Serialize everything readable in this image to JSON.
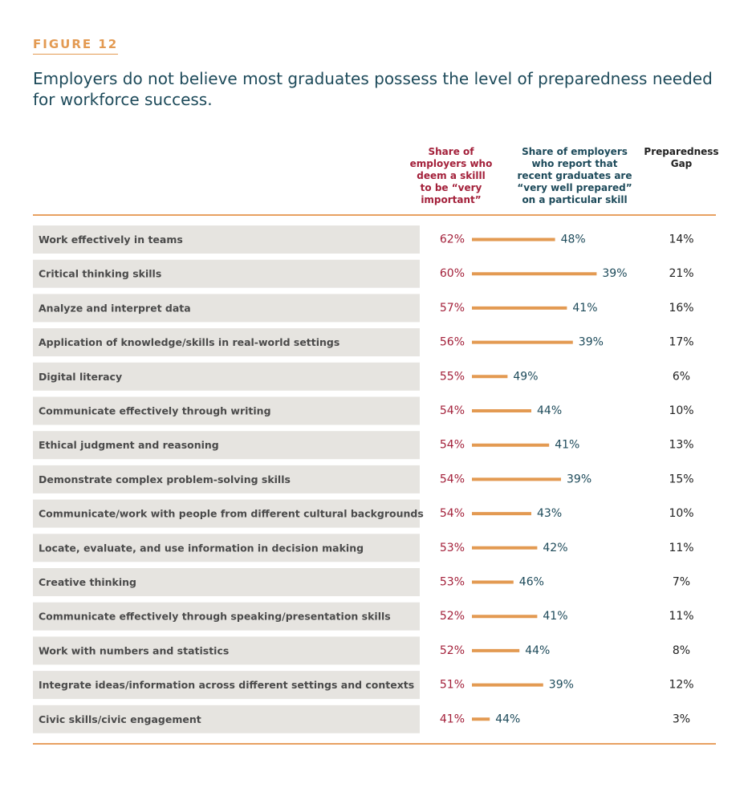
{
  "figure": {
    "label": "FIGURE 12",
    "title": "Employers do not believe most graduates possess the level of preparedness needed for workforce success."
  },
  "headers": {
    "important": "Share of\nemployers who\ndeem a skilll\nto be “very\nimportant”",
    "prepared": "Share of employers\nwho report that\nrecent graduates are\n“very well prepared”\non a particular skill",
    "gap": "Preparedness\nGap"
  },
  "colors": {
    "accent_orange": "#e39a52",
    "important_red": "#a3203a",
    "prepared_teal": "#1d4a5a",
    "row_background": "#e6e4e0"
  },
  "chart_data": {
    "type": "table",
    "columns": [
      "Share of employers who deem a skilll to be “very important”",
      "Share of employers who report that recent graduates are “very well prepared” on a particular skill",
      "Preparedness Gap"
    ],
    "rows": [
      {
        "skill": "Work effectively in teams",
        "important": 62,
        "prepared": 48,
        "gap": 14
      },
      {
        "skill": "Critical thinking skills",
        "important": 60,
        "prepared": 39,
        "gap": 21
      },
      {
        "skill": "Analyze and interpret data",
        "important": 57,
        "prepared": 41,
        "gap": 16
      },
      {
        "skill": "Application of knowledge/skills in real-world settings",
        "important": 56,
        "prepared": 39,
        "gap": 17
      },
      {
        "skill": "Digital literacy",
        "important": 55,
        "prepared": 49,
        "gap": 6
      },
      {
        "skill": "Communicate effectively through writing",
        "important": 54,
        "prepared": 44,
        "gap": 10
      },
      {
        "skill": "Ethical judgment and reasoning",
        "important": 54,
        "prepared": 41,
        "gap": 13
      },
      {
        "skill": "Demonstrate complex problem-solving skills",
        "important": 54,
        "prepared": 39,
        "gap": 15
      },
      {
        "skill": "Communicate/work with people from different cultural backgrounds",
        "important": 54,
        "prepared": 43,
        "gap": 10
      },
      {
        "skill": "Locate, evaluate, and use information in decision making",
        "important": 53,
        "prepared": 42,
        "gap": 11
      },
      {
        "skill": "Creative thinking",
        "important": 53,
        "prepared": 46,
        "gap": 7
      },
      {
        "skill": "Communicate effectively through speaking/presentation skills",
        "important": 52,
        "prepared": 41,
        "gap": 11
      },
      {
        "skill": "Work with numbers and statistics",
        "important": 52,
        "prepared": 44,
        "gap": 8
      },
      {
        "skill": "Integrate ideas/information across different settings and contexts",
        "important": 51,
        "prepared": 39,
        "gap": 12
      },
      {
        "skill": "Civic skills/civic engagement",
        "important": 41,
        "prepared": 44,
        "gap": 3
      }
    ],
    "value_suffix": "%"
  }
}
